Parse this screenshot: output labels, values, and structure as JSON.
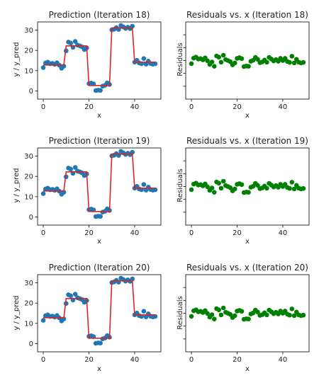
{
  "figure": {
    "background": "#ffffff"
  },
  "chart_data": [
    {
      "type": "scatter",
      "title": "Prediction (Iteration 18)",
      "xlabel": "x",
      "ylabel": "y / y_pred",
      "xlim": [
        -2.5,
        51.5
      ],
      "ylim": [
        -4,
        34
      ],
      "xticks": [
        0,
        20,
        40
      ],
      "yticks": [
        0,
        10,
        20,
        30
      ],
      "x": [
        0,
        1,
        2,
        3,
        4,
        5,
        6,
        7,
        8,
        9,
        10,
        11,
        12,
        13,
        14,
        15,
        16,
        17,
        18,
        19,
        20,
        21,
        22,
        23,
        24,
        25,
        26,
        27,
        28,
        29,
        30,
        31,
        32,
        33,
        34,
        35,
        36,
        37,
        38,
        39,
        40,
        41,
        42,
        43,
        44,
        45,
        46,
        47,
        48,
        49
      ],
      "series": [
        {
          "kind": "points",
          "color": "#1f77b4",
          "values": [
            11.5,
            13.8,
            14.2,
            13.4,
            13.6,
            13.1,
            13.9,
            12.7,
            11.2,
            12.2,
            19.8,
            24.1,
            23.6,
            21.5,
            24.4,
            22.6,
            22.2,
            21.7,
            20.4,
            21.2,
            3.6,
            3.9,
            3.5,
            0.2,
            0.4,
            0.3,
            2.4,
            2.8,
            4.0,
            3.2,
            30.1,
            30.4,
            31.2,
            30.3,
            32.3,
            31.6,
            30.8,
            31.4,
            30.7,
            31.9,
            14.2,
            15.1,
            13.8,
            13.4,
            16.0,
            13.2,
            14.7,
            13.5,
            13.2,
            13.4
          ]
        },
        {
          "kind": "line",
          "color": "#d62728",
          "values": [
            12.8,
            12.8,
            12.8,
            12.8,
            12.8,
            12.8,
            12.8,
            12.8,
            12.8,
            12.8,
            22.2,
            22.2,
            22.2,
            22.2,
            22.2,
            22.2,
            22.2,
            22.2,
            22.2,
            22.2,
            2.7,
            2.7,
            2.7,
            2.7,
            2.7,
            2.7,
            2.7,
            2.7,
            2.7,
            2.7,
            31.0,
            31.0,
            31.0,
            31.0,
            31.0,
            31.0,
            31.0,
            31.0,
            31.0,
            31.0,
            14.2,
            14.2,
            14.2,
            14.2,
            14.2,
            14.2,
            14.2,
            14.2,
            14.2,
            14.2
          ]
        }
      ]
    },
    {
      "type": "scatter",
      "title": "Residuals vs. x (Iteration 18)",
      "xlabel": "x",
      "ylabel": "Residuals",
      "xlim": [
        -2.5,
        51.5
      ],
      "ylim": [
        -16,
        16
      ],
      "xticks": [
        0,
        20,
        40
      ],
      "yticks": [],
      "x": [
        0,
        1,
        2,
        3,
        4,
        5,
        6,
        7,
        8,
        9,
        10,
        11,
        12,
        13,
        14,
        15,
        16,
        17,
        18,
        19,
        20,
        21,
        22,
        23,
        24,
        25,
        26,
        27,
        28,
        29,
        30,
        31,
        32,
        33,
        34,
        35,
        36,
        37,
        38,
        39,
        40,
        41,
        42,
        43,
        44,
        45,
        46,
        47,
        48,
        49
      ],
      "series": [
        {
          "kind": "points",
          "color": "#008000",
          "values": [
            -1.3,
            1.0,
            1.4,
            0.6,
            0.8,
            0.3,
            1.1,
            -0.1,
            -1.6,
            -0.6,
            -2.4,
            1.9,
            1.4,
            -0.7,
            2.2,
            0.4,
            0.0,
            -0.5,
            -1.8,
            -1.0,
            0.9,
            1.2,
            0.8,
            -2.5,
            -2.3,
            -2.4,
            -0.3,
            0.1,
            1.3,
            0.5,
            -0.9,
            -0.6,
            0.2,
            -0.7,
            1.3,
            0.6,
            -0.2,
            0.4,
            -0.3,
            0.9,
            0.0,
            0.9,
            -0.4,
            -0.8,
            1.8,
            -1.0,
            0.5,
            -0.7,
            -1.0,
            -0.8
          ]
        }
      ]
    },
    {
      "type": "scatter",
      "title": "Prediction (Iteration 19)",
      "xlabel": "x",
      "ylabel": "y / y_pred",
      "xlim": [
        -2.5,
        51.5
      ],
      "ylim": [
        -4,
        34
      ],
      "xticks": [
        0,
        20,
        40
      ],
      "yticks": [
        0,
        10,
        20,
        30
      ],
      "x": [
        0,
        1,
        2,
        3,
        4,
        5,
        6,
        7,
        8,
        9,
        10,
        11,
        12,
        13,
        14,
        15,
        16,
        17,
        18,
        19,
        20,
        21,
        22,
        23,
        24,
        25,
        26,
        27,
        28,
        29,
        30,
        31,
        32,
        33,
        34,
        35,
        36,
        37,
        38,
        39,
        40,
        41,
        42,
        43,
        44,
        45,
        46,
        47,
        48,
        49
      ],
      "series": [
        {
          "kind": "points",
          "color": "#1f77b4",
          "values": [
            11.5,
            13.8,
            14.2,
            13.4,
            13.6,
            13.1,
            13.9,
            12.7,
            11.2,
            12.2,
            19.8,
            24.1,
            23.6,
            21.5,
            24.4,
            22.6,
            22.2,
            21.7,
            20.4,
            21.2,
            3.6,
            3.9,
            3.5,
            0.2,
            0.4,
            0.3,
            2.4,
            2.8,
            4.0,
            3.2,
            30.1,
            30.4,
            31.2,
            30.3,
            32.3,
            31.6,
            30.8,
            31.4,
            30.7,
            31.9,
            14.2,
            15.1,
            13.8,
            13.4,
            16.0,
            13.2,
            14.7,
            13.5,
            13.2,
            13.4
          ]
        },
        {
          "kind": "line",
          "color": "#d62728",
          "values": [
            12.8,
            12.8,
            12.8,
            12.8,
            12.8,
            12.8,
            12.8,
            12.8,
            12.8,
            12.8,
            22.2,
            22.2,
            22.2,
            22.2,
            22.2,
            22.2,
            22.2,
            22.2,
            22.2,
            22.2,
            2.7,
            2.7,
            2.7,
            2.7,
            2.7,
            2.7,
            2.7,
            2.7,
            2.7,
            2.7,
            31.0,
            31.0,
            31.0,
            31.0,
            31.0,
            31.0,
            31.0,
            31.0,
            31.0,
            31.0,
            14.2,
            14.2,
            14.2,
            14.2,
            14.2,
            14.2,
            14.2,
            14.2,
            14.2,
            14.2
          ]
        }
      ]
    },
    {
      "type": "scatter",
      "title": "Residuals vs. x (Iteration 19)",
      "xlabel": "x",
      "ylabel": "Residuals",
      "xlim": [
        -2.5,
        51.5
      ],
      "ylim": [
        -16,
        16
      ],
      "xticks": [
        0,
        20,
        40
      ],
      "yticks": [],
      "x": [
        0,
        1,
        2,
        3,
        4,
        5,
        6,
        7,
        8,
        9,
        10,
        11,
        12,
        13,
        14,
        15,
        16,
        17,
        18,
        19,
        20,
        21,
        22,
        23,
        24,
        25,
        26,
        27,
        28,
        29,
        30,
        31,
        32,
        33,
        34,
        35,
        36,
        37,
        38,
        39,
        40,
        41,
        42,
        43,
        44,
        45,
        46,
        47,
        48,
        49
      ],
      "series": [
        {
          "kind": "points",
          "color": "#008000",
          "values": [
            -1.3,
            1.0,
            1.4,
            0.6,
            0.8,
            0.3,
            1.1,
            -0.1,
            -1.6,
            -0.6,
            -2.4,
            1.9,
            1.4,
            -0.7,
            2.2,
            0.4,
            0.0,
            -0.5,
            -1.8,
            -1.0,
            0.9,
            1.2,
            0.8,
            -2.5,
            -2.3,
            -2.4,
            -0.3,
            0.1,
            1.3,
            0.5,
            -0.9,
            -0.6,
            0.2,
            -0.7,
            1.3,
            0.6,
            -0.2,
            0.4,
            -0.3,
            0.9,
            0.0,
            0.9,
            -0.4,
            -0.8,
            1.8,
            -1.0,
            0.5,
            -0.7,
            -1.0,
            -0.8
          ]
        }
      ]
    },
    {
      "type": "scatter",
      "title": "Prediction (Iteration 20)",
      "xlabel": "x",
      "ylabel": "y / y_pred",
      "xlim": [
        -2.5,
        51.5
      ],
      "ylim": [
        -4,
        34
      ],
      "xticks": [
        0,
        20,
        40
      ],
      "yticks": [
        0,
        10,
        20,
        30
      ],
      "x": [
        0,
        1,
        2,
        3,
        4,
        5,
        6,
        7,
        8,
        9,
        10,
        11,
        12,
        13,
        14,
        15,
        16,
        17,
        18,
        19,
        20,
        21,
        22,
        23,
        24,
        25,
        26,
        27,
        28,
        29,
        30,
        31,
        32,
        33,
        34,
        35,
        36,
        37,
        38,
        39,
        40,
        41,
        42,
        43,
        44,
        45,
        46,
        47,
        48,
        49
      ],
      "series": [
        {
          "kind": "points",
          "color": "#1f77b4",
          "values": [
            11.5,
            13.8,
            14.2,
            13.4,
            13.6,
            13.1,
            13.9,
            12.7,
            11.2,
            12.2,
            19.8,
            24.1,
            23.6,
            21.5,
            24.4,
            22.6,
            22.2,
            21.7,
            20.4,
            21.2,
            3.6,
            3.9,
            3.5,
            0.2,
            0.4,
            0.3,
            2.4,
            2.8,
            4.0,
            3.2,
            30.1,
            30.4,
            31.2,
            30.3,
            32.3,
            31.6,
            30.8,
            31.4,
            30.7,
            31.9,
            14.2,
            15.1,
            13.8,
            13.4,
            16.0,
            13.2,
            14.7,
            13.5,
            13.2,
            13.4
          ]
        },
        {
          "kind": "line",
          "color": "#d62728",
          "values": [
            12.8,
            12.8,
            12.8,
            12.8,
            12.8,
            12.8,
            12.8,
            12.8,
            12.8,
            12.8,
            22.2,
            22.2,
            22.2,
            22.2,
            22.2,
            22.2,
            22.2,
            22.2,
            22.2,
            22.2,
            2.7,
            2.7,
            2.7,
            2.7,
            2.7,
            2.7,
            2.7,
            2.7,
            2.7,
            2.7,
            31.0,
            31.0,
            31.0,
            31.0,
            31.0,
            31.0,
            31.0,
            31.0,
            31.0,
            31.0,
            14.2,
            14.2,
            14.2,
            14.2,
            14.2,
            14.2,
            14.2,
            14.2,
            14.2,
            14.2
          ]
        }
      ]
    },
    {
      "type": "scatter",
      "title": "Residuals vs. x (Iteration 20)",
      "xlabel": "x",
      "ylabel": "Residuals",
      "xlim": [
        -2.5,
        51.5
      ],
      "ylim": [
        -16,
        16
      ],
      "xticks": [
        0,
        20,
        40
      ],
      "yticks": [],
      "x": [
        0,
        1,
        2,
        3,
        4,
        5,
        6,
        7,
        8,
        9,
        10,
        11,
        12,
        13,
        14,
        15,
        16,
        17,
        18,
        19,
        20,
        21,
        22,
        23,
        24,
        25,
        26,
        27,
        28,
        29,
        30,
        31,
        32,
        33,
        34,
        35,
        36,
        37,
        38,
        39,
        40,
        41,
        42,
        43,
        44,
        45,
        46,
        47,
        48,
        49
      ],
      "series": [
        {
          "kind": "points",
          "color": "#008000",
          "values": [
            -1.3,
            1.0,
            1.4,
            0.6,
            0.8,
            0.3,
            1.1,
            -0.1,
            -1.6,
            -0.6,
            -2.4,
            1.9,
            1.4,
            -0.7,
            2.2,
            0.4,
            0.0,
            -0.5,
            -1.8,
            -1.0,
            0.9,
            1.2,
            0.8,
            -2.5,
            -2.3,
            -2.4,
            -0.3,
            0.1,
            1.3,
            0.5,
            -0.9,
            -0.6,
            0.2,
            -0.7,
            1.3,
            0.6,
            -0.2,
            0.4,
            -0.3,
            0.9,
            0.0,
            0.9,
            -0.4,
            -0.8,
            1.8,
            -1.0,
            0.5,
            -0.7,
            -1.0,
            -0.8
          ]
        }
      ]
    }
  ]
}
